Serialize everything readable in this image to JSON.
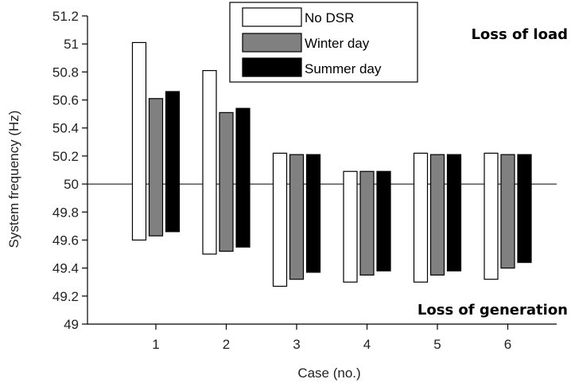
{
  "chart_data": {
    "type": "bar",
    "subtype": "floating-range",
    "xlabel": "Case (no.)",
    "ylabel": "System frequency (Hz)",
    "categories": [
      "1",
      "2",
      "3",
      "4",
      "5",
      "6"
    ],
    "ylim": [
      49,
      51.2
    ],
    "yticks": [
      "49",
      "49.2",
      "49.4",
      "49.6",
      "49.8",
      "50",
      "50.2",
      "50.4",
      "50.6",
      "50.8",
      "51",
      "51.2"
    ],
    "reference_line": 50,
    "grid": false,
    "legend_position": "top-center",
    "series": [
      {
        "name": "No DSR",
        "color": "#ffffff",
        "high": [
          51.01,
          50.81,
          50.22,
          50.09,
          50.22,
          50.22
        ],
        "low": [
          49.6,
          49.5,
          49.27,
          49.3,
          49.3,
          49.32
        ]
      },
      {
        "name": "Winter day",
        "color": "#808080",
        "high": [
          50.61,
          50.51,
          50.21,
          50.09,
          50.21,
          50.21
        ],
        "low": [
          49.63,
          49.52,
          49.32,
          49.35,
          49.35,
          49.4
        ]
      },
      {
        "name": "Summer day",
        "color": "#000000",
        "high": [
          50.66,
          50.54,
          50.21,
          50.09,
          50.21,
          50.21
        ],
        "low": [
          49.66,
          49.55,
          49.37,
          49.38,
          49.38,
          49.44
        ]
      }
    ],
    "annotations": {
      "top": "Loss of load",
      "bottom": "Loss of generation"
    }
  }
}
